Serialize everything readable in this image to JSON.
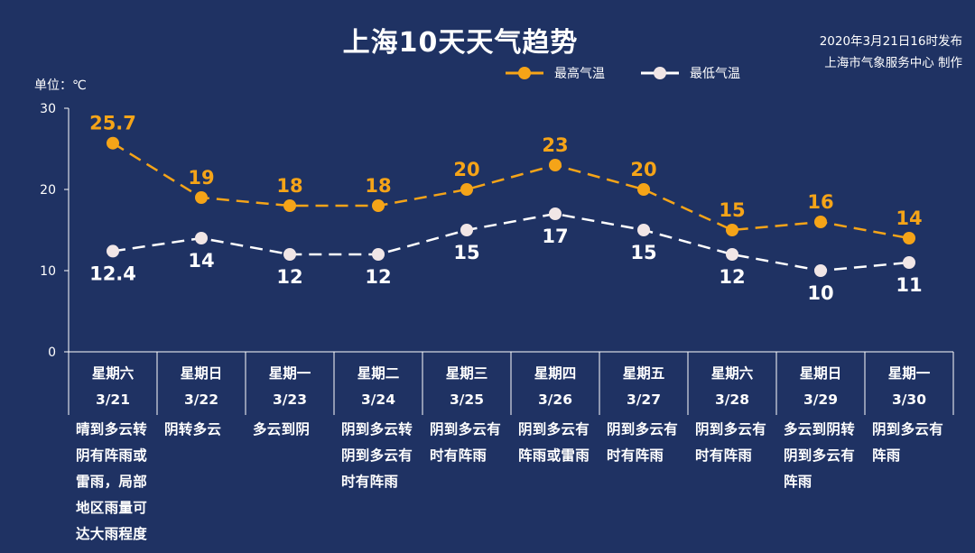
{
  "title": "上海10天天气趋势",
  "publish": {
    "line1": "2020年3月21日16时发布",
    "line2": "上海市气象服务中心 制作"
  },
  "unit_label": "单位：℃",
  "colors": {
    "background": "#1f3263",
    "high": "#f5a418",
    "low": "#ffffff"
  },
  "chart_data": {
    "type": "line",
    "title": "上海10天天气趋势",
    "ylabel": "单位：℃",
    "ylim": [
      0,
      30
    ],
    "yticks": [
      0,
      10,
      20,
      30
    ],
    "grid": false,
    "legend_position": "top-right",
    "categories": [
      "3/21",
      "3/22",
      "3/23",
      "3/24",
      "3/25",
      "3/26",
      "3/27",
      "3/28",
      "3/29",
      "3/30"
    ],
    "series": [
      {
        "name": "最高气温",
        "values": [
          25.7,
          19,
          18,
          18,
          20,
          23,
          20,
          15,
          16,
          14
        ],
        "labels": [
          "25.7",
          "19",
          "18",
          "18",
          "20",
          "23",
          "20",
          "15",
          "16",
          "14"
        ]
      },
      {
        "name": "最低气温",
        "values": [
          12.4,
          14,
          12,
          12,
          15,
          17,
          15,
          12,
          10,
          11
        ],
        "labels": [
          "12.4",
          "14",
          "12",
          "12",
          "15",
          "17",
          "15",
          "12",
          "10",
          "11"
        ]
      }
    ]
  },
  "days": [
    {
      "weekday": "星期六",
      "date": "3/21",
      "weather": "晴到多云转阴有阵雨或雷雨，局部地区雨量可达大雨程度"
    },
    {
      "weekday": "星期日",
      "date": "3/22",
      "weather": "阴转多云"
    },
    {
      "weekday": "星期一",
      "date": "3/23",
      "weather": "多云到阴"
    },
    {
      "weekday": "星期二",
      "date": "3/24",
      "weather": "阴到多云转阴到多云有时有阵雨"
    },
    {
      "weekday": "星期三",
      "date": "3/25",
      "weather": "阴到多云有时有阵雨"
    },
    {
      "weekday": "星期四",
      "date": "3/26",
      "weather": "阴到多云有阵雨或雷雨"
    },
    {
      "weekday": "星期五",
      "date": "3/27",
      "weather": "阴到多云有时有阵雨"
    },
    {
      "weekday": "星期六",
      "date": "3/28",
      "weather": "阴到多云有时有阵雨"
    },
    {
      "weekday": "星期日",
      "date": "3/29",
      "weather": "多云到阴转阴到多云有阵雨"
    },
    {
      "weekday": "星期一",
      "date": "3/30",
      "weather": "阴到多云有阵雨"
    }
  ]
}
